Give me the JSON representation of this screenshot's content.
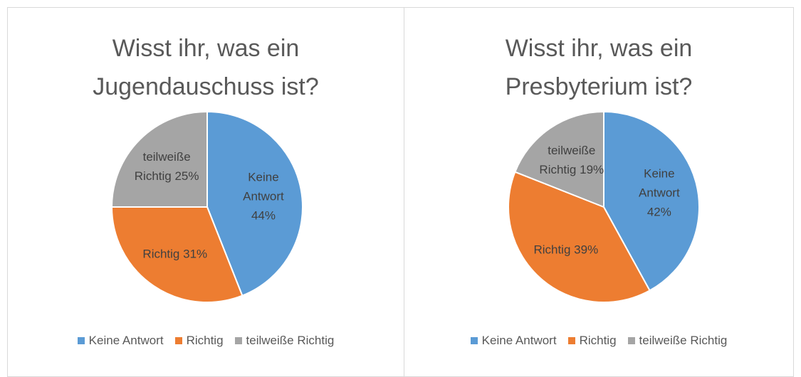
{
  "chart_data": [
    {
      "type": "pie",
      "title": "Wisst ihr, was ein Jugendauschuss ist?",
      "categories": [
        "Keine Antwort",
        "Richtig",
        "teilweiße Richtig"
      ],
      "values": [
        44,
        31,
        25
      ],
      "value_labels": [
        "44%",
        "31%",
        "25%"
      ],
      "colors": [
        "#5b9bd5",
        "#ed7d31",
        "#a5a5a5"
      ],
      "legend": "bottom"
    },
    {
      "type": "pie",
      "title": "Wisst ihr, was ein Presbyterium ist?",
      "categories": [
        "Keine Antwort",
        "Richtig",
        "teilweiße Richtig"
      ],
      "values": [
        42,
        39,
        19
      ],
      "value_labels": [
        "42%",
        "39%",
        "19%"
      ],
      "colors": [
        "#5b9bd5",
        "#ed7d31",
        "#a5a5a5"
      ],
      "legend": "bottom"
    }
  ]
}
